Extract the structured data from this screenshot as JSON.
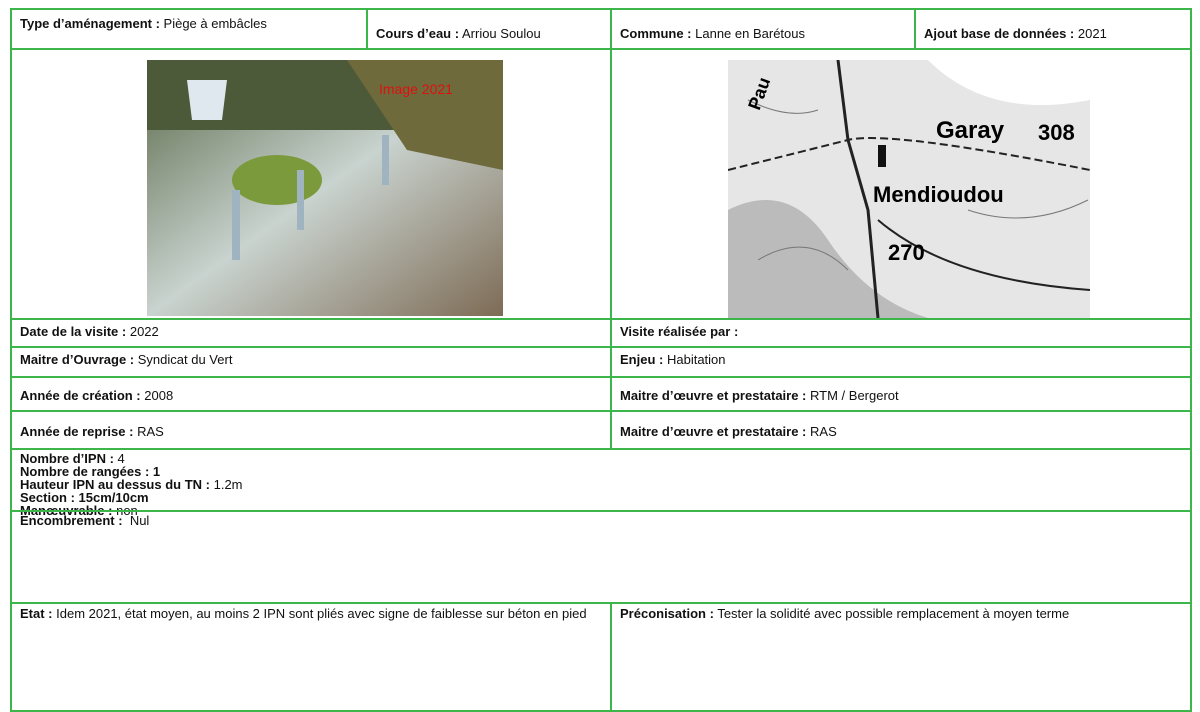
{
  "header": {
    "cells": [
      {
        "label": "Type d’aménagement :",
        "value": "Piège à embâcles"
      },
      {
        "label": "Cours d’eau :",
        "value": "Arriou Soulou"
      },
      {
        "label": "Commune :",
        "value": "Lanne en Barétous"
      },
      {
        "label": "Ajout base de données :",
        "value": "2021"
      }
    ]
  },
  "images": {
    "photo": {
      "caption": "Image 2021"
    },
    "map": {
      "labels": [
        "Pau",
        "Garay",
        "308",
        "Mendioudou",
        "270"
      ]
    }
  },
  "rows": [
    [
      {
        "label": "Date de la visite :",
        "value": "2022"
      },
      {
        "label": "Visite réalisée par :"
      }
    ],
    [
      {
        "label": "Maitre d’Ouvrage :",
        "value": "Syndicat du Vert"
      },
      {
        "label": "Enjeu :",
        "value": "Habitation"
      }
    ],
    [
      {
        "label": "Année de création :",
        "value": "2008"
      },
      {
        "label": "Maitre d’œuvre et prestataire :",
        "value": "RTM / Bergerot"
      }
    ],
    [
      {
        "label": "Année de reprise :",
        "value": "RAS"
      },
      {
        "label": "Maitre d’œuvre et prestataire :",
        "value": "RAS"
      }
    ]
  ],
  "details": [
    {
      "label": "Nombre d’IPN :",
      "value": "4"
    },
    {
      "label": "Nombre de rangées : 1"
    },
    {
      "label": "Hauteur IPN au dessus du TN :",
      "value": "1.2m"
    },
    {
      "label": "Section : 15cm/10cm"
    },
    {
      "label": "Manœuvrable :",
      "value": "non"
    }
  ],
  "encombrement": {
    "label": "Encombrement :",
    "value": "Nul"
  },
  "etat": {
    "label": "Etat :",
    "value": "Idem 2021, état moyen, au moins 2 IPN sont pliés avec signe de faiblesse sur béton en pied"
  },
  "preconisation": {
    "label": "Préconisation :",
    "value": "Tester la solidité avec possible remplacement à moyen terme"
  }
}
